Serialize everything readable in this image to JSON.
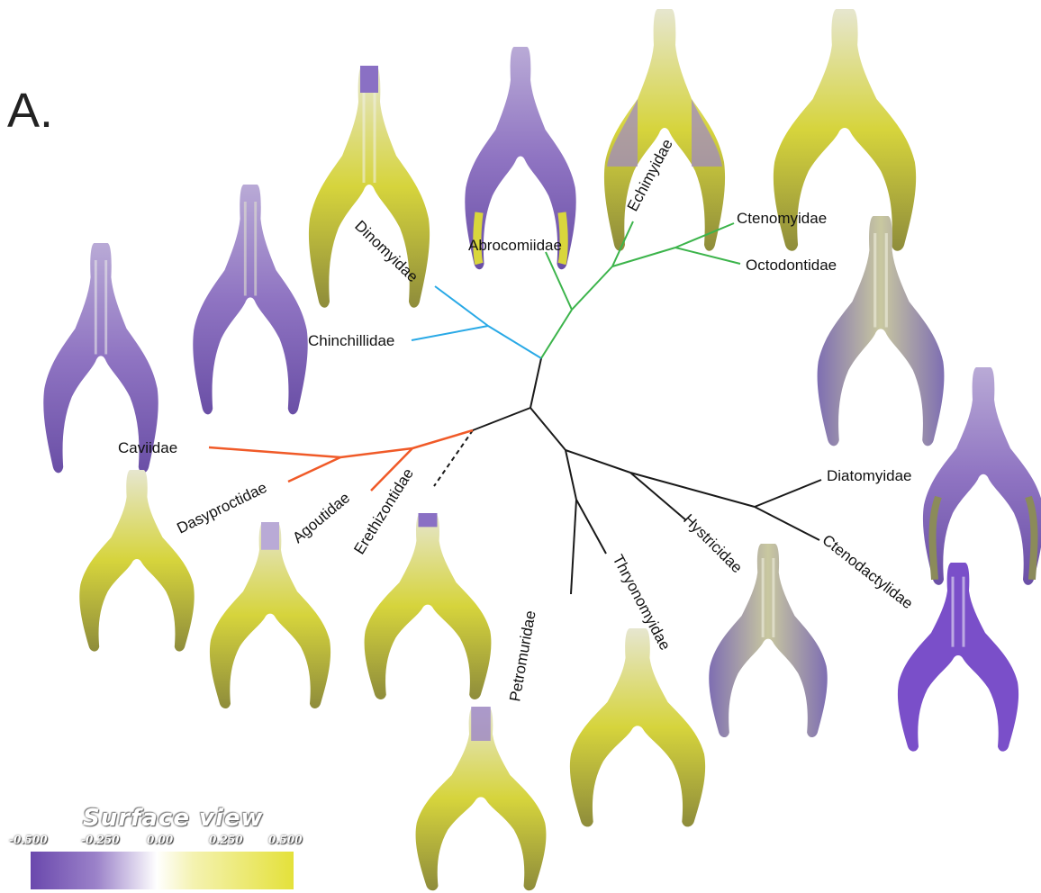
{
  "figure": {
    "panel_label": "A."
  },
  "colors": {
    "chinchilloid_branch": "#29a9e6",
    "octodontoid_branch": "#3cb44b",
    "cavioid_branch": "#f05a28",
    "other_branch": "#1a1a1a"
  },
  "taxa": [
    {
      "id": "dinomyidae",
      "label": "Dinomyidae"
    },
    {
      "id": "abrocomiidae",
      "label": "Abrocomiidae"
    },
    {
      "id": "echimyidae",
      "label": "Echimyidae"
    },
    {
      "id": "ctenomyidae",
      "label": "Ctenomyidae"
    },
    {
      "id": "octodontidae",
      "label": "Octodontidae"
    },
    {
      "id": "chinchillidae",
      "label": "Chinchillidae"
    },
    {
      "id": "caviidae",
      "label": "Caviidae"
    },
    {
      "id": "dasyproctidae",
      "label": "Dasyproctidae"
    },
    {
      "id": "agoutidae",
      "label": "Agoutidae"
    },
    {
      "id": "erethizontidae",
      "label": "Erethizontidae"
    },
    {
      "id": "diatomyidae",
      "label": "Diatomyidae"
    },
    {
      "id": "hystricidae",
      "label": "Hystricidae"
    },
    {
      "id": "ctenodactylidae",
      "label": "Ctenodactylidae"
    },
    {
      "id": "thryonomyidae",
      "label": "Thryonomyidae"
    },
    {
      "id": "petromuridae",
      "label": "Petromuridae"
    }
  ],
  "legend": {
    "title": "Surface view",
    "ticks": [
      "-0.500",
      "-0.250",
      "0.00",
      "0.250",
      "0.500"
    ],
    "colors": {
      "negative": "#6a48ad",
      "zero": "#ffffff",
      "positive": "#e4e13a"
    }
  }
}
